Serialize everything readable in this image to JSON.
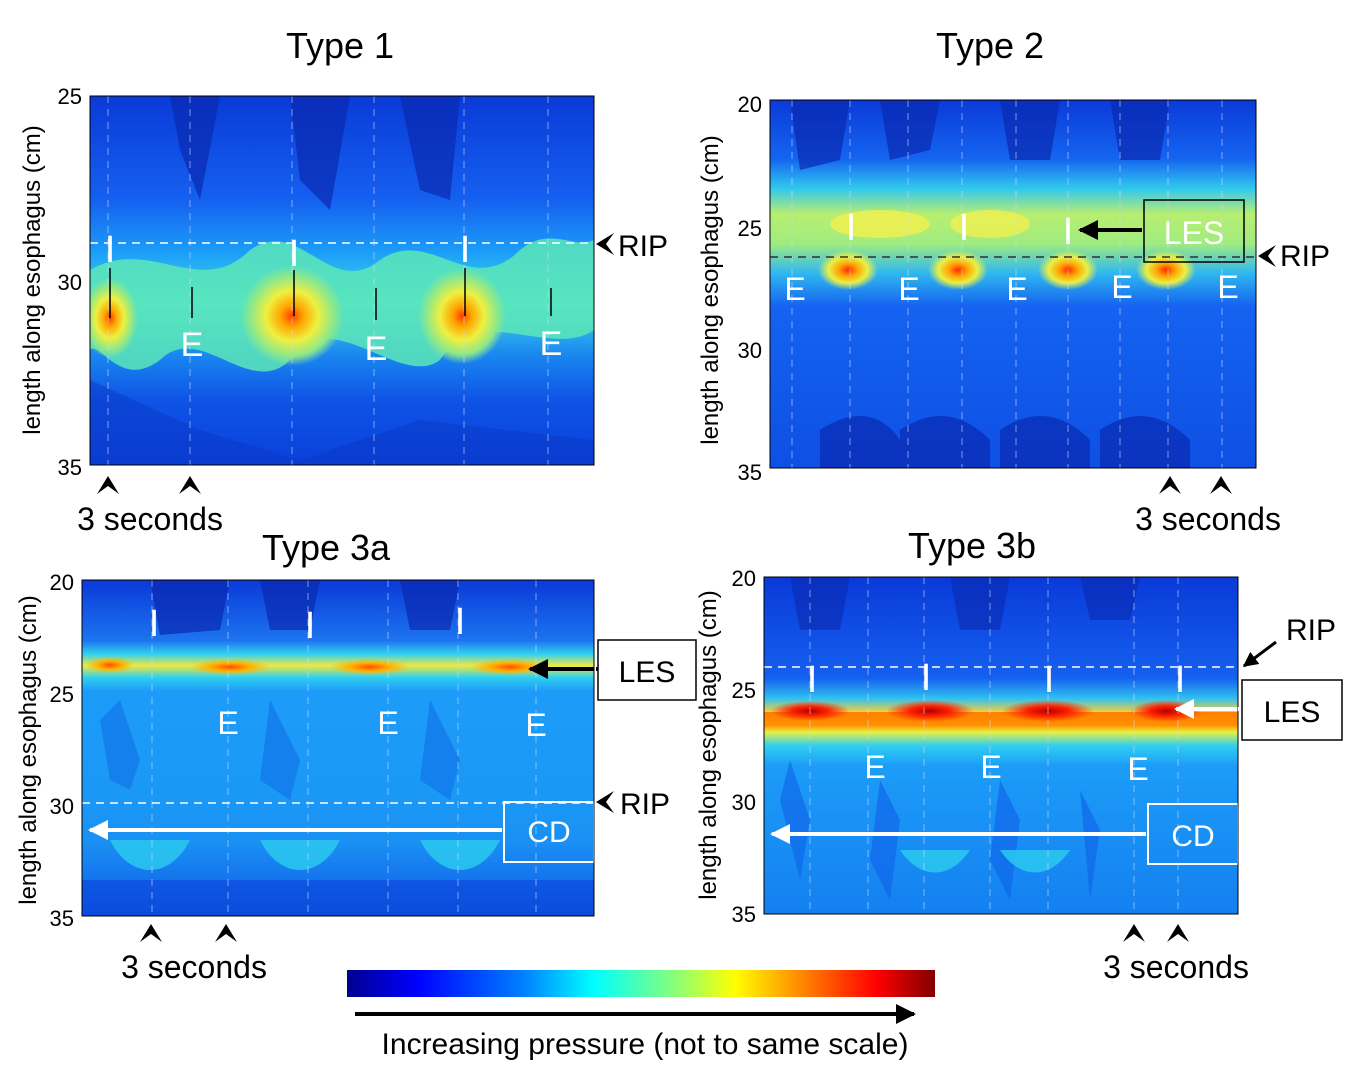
{
  "colorbar": {
    "label": "Increasing pressure (not to same scale)",
    "colors": [
      "#00008f",
      "#0000ff",
      "#0080ff",
      "#00ffff",
      "#80ff80",
      "#ffff00",
      "#ff8000",
      "#ff0000",
      "#800000"
    ]
  },
  "chart_data": [
    {
      "type": "heatmap",
      "title": "Type 1",
      "ylabel": "length along esophagus (cm)",
      "ylim": [
        25,
        35
      ],
      "yticks": [
        "25",
        "30",
        "35"
      ],
      "rip_depth": 29.3,
      "band_depth": 31,
      "inspiration_label": "I",
      "expiration_label": "E",
      "inspiration_count": 3,
      "expiration_count": 3,
      "time_scale_label": "3 seconds",
      "annotations": [
        {
          "text": "RIP",
          "side": "right",
          "depth": 29.3
        }
      ]
    },
    {
      "type": "heatmap",
      "title": "Type 2",
      "ylabel": "length along esophagus (cm)",
      "ylim": [
        20,
        35
      ],
      "yticks": [
        "20",
        "25",
        "30",
        "35"
      ],
      "rip_depth": 26.2,
      "band_depth": 26.5,
      "inspiration_label": "I",
      "expiration_label": "E",
      "inspiration_count": 3,
      "expiration_count": 5,
      "time_scale_label": "3 seconds",
      "annotations": [
        {
          "text": "LES",
          "side": "inside-boxed",
          "depth": 25.2
        },
        {
          "text": "RIP",
          "side": "right",
          "depth": 26.2
        }
      ]
    },
    {
      "type": "heatmap",
      "title": "Type 3a",
      "ylabel": "length along esophagus (cm)",
      "ylim": [
        20,
        35
      ],
      "yticks": [
        "20",
        "25",
        "30",
        "35"
      ],
      "rip_depth": 30,
      "band_depth": 24,
      "inspiration_label": "I",
      "expiration_label": "E",
      "inspiration_count": 3,
      "expiration_count": 3,
      "time_scale_label": "3 seconds",
      "annotations": [
        {
          "text": "LES",
          "side": "right-boxed",
          "depth": 24
        },
        {
          "text": "RIP",
          "side": "right",
          "depth": 30
        },
        {
          "text": "CD",
          "side": "inside-boxed",
          "depth": 31.2
        }
      ]
    },
    {
      "type": "heatmap",
      "title": "Type 3b",
      "ylabel": "length along esophagus (cm)",
      "ylim": [
        20,
        35
      ],
      "yticks": [
        "20",
        "25",
        "30",
        "35"
      ],
      "rip_depth": 24,
      "band_depth": 25.9,
      "inspiration_label": "I",
      "expiration_label": "E",
      "inspiration_count": 4,
      "expiration_count": 3,
      "time_scale_label": "3 seconds",
      "annotations": [
        {
          "text": "RIP",
          "side": "right",
          "depth": 24
        },
        {
          "text": "LES",
          "side": "right-boxed",
          "depth": 25.9
        },
        {
          "text": "CD",
          "side": "inside-boxed",
          "depth": 31.5
        }
      ]
    }
  ]
}
